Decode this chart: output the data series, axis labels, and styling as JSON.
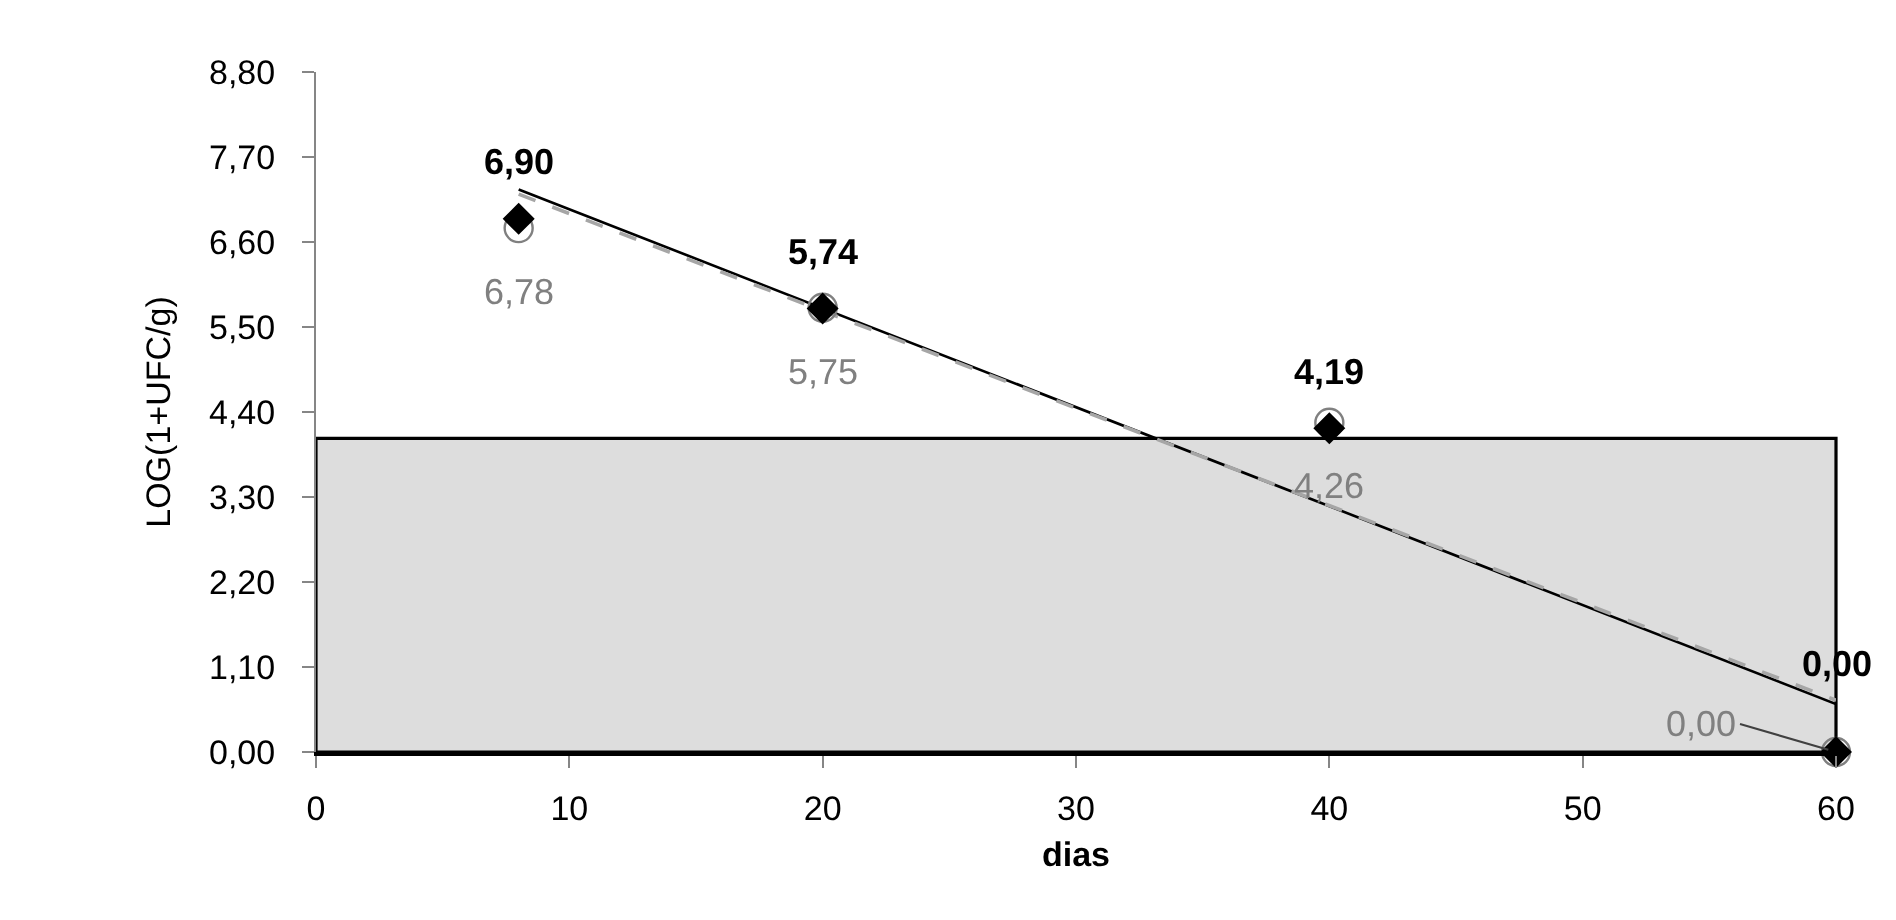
{
  "chart_data": {
    "type": "scatter",
    "xlabel": "dias",
    "ylabel": "LOG(1+UFC/g)",
    "xlim": [
      0,
      60
    ],
    "xticks": [
      0,
      10,
      20,
      30,
      40,
      50,
      60
    ],
    "ylim": [
      0,
      8.8
    ],
    "yticks": [
      {
        "value": 0,
        "label": "0,00"
      },
      {
        "value": 1.1,
        "label": "1,10"
      },
      {
        "value": 2.2,
        "label": "2,20"
      },
      {
        "value": 3.3,
        "label": "3,30"
      },
      {
        "value": 4.4,
        "label": "4,40"
      },
      {
        "value": 5.5,
        "label": "5,50"
      },
      {
        "value": 6.6,
        "label": "6,60"
      },
      {
        "value": 7.7,
        "label": "7,70"
      },
      {
        "value": 8.8,
        "label": "8,80"
      }
    ],
    "grid": false,
    "bands": [
      {
        "axis": "y",
        "from": 0,
        "to": 4.06,
        "color": "#dddddd"
      }
    ],
    "series": [
      {
        "color": "#808080",
        "marker": "circle",
        "x": [
          8,
          20,
          40,
          60
        ],
        "values": [
          6.78,
          5.75,
          4.26,
          0
        ],
        "value_labels": [
          "6,78",
          "5,75",
          "4,26",
          "0,00"
        ]
      },
      {
        "color": "#000000",
        "marker": "diamond",
        "x": [
          8,
          20,
          40,
          60
        ],
        "values": [
          6.9,
          5.74,
          4.19,
          0
        ],
        "value_labels": [
          "6,90",
          "5,74",
          "4,19",
          "0,00"
        ]
      },
      {
        "type": "line",
        "color": "#000000",
        "line_style": "solid",
        "x": [
          8,
          60
        ],
        "values": [
          7.28,
          0.62
        ]
      },
      {
        "type": "line",
        "color": "#a6a6a6",
        "line_style": "dashed",
        "x": [
          8,
          60
        ],
        "values": [
          7.22,
          0.67
        ]
      }
    ]
  }
}
